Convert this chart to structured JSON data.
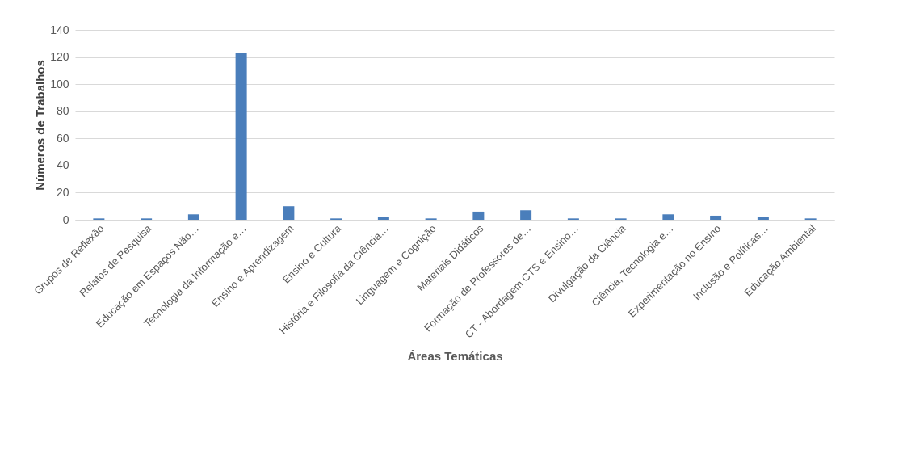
{
  "chart_data": {
    "type": "bar",
    "xlabel": "Áreas Temáticas",
    "ylabel": "Números de Trabalhos",
    "categories": [
      "Grupos de Reflexão",
      "Relatos de Pesquisa",
      "Educação em Espaços Não…",
      "Tecnologia da Informação e…",
      "Ensino e Aprendizagem",
      "Ensino e Cultura",
      "História e Filosofia da Ciência…",
      "Linguagem e Cognição",
      "Materiais Didáticos",
      "Formação de Professores de…",
      "CT - Abordagem CTS e Ensino…",
      "Divulgação da Ciência",
      "Ciência, Tecnologia e…",
      "Experimentação no Ensino",
      "Inclusão e Políticas…",
      "Educação Ambiental"
    ],
    "values": [
      1,
      1,
      4,
      123,
      10,
      1,
      2,
      1,
      6,
      7,
      1,
      1,
      4,
      3,
      2,
      1
    ],
    "color": "#4a7ebb",
    "ylim": [
      0,
      140
    ],
    "yticks": [
      0,
      20,
      40,
      60,
      80,
      100,
      120,
      140
    ],
    "grid": "y"
  }
}
